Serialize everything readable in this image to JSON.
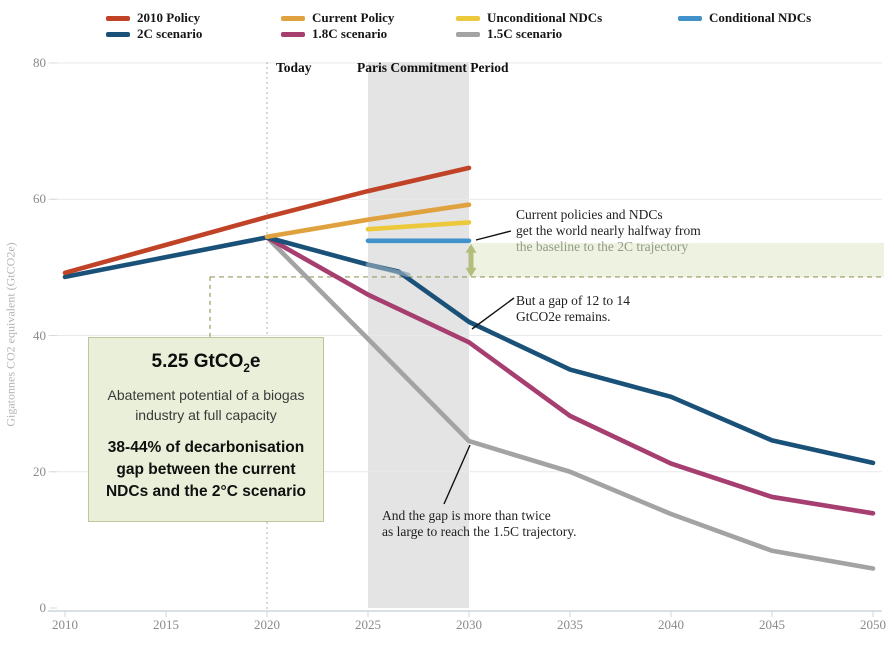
{
  "chart_data": {
    "type": "line",
    "title": "",
    "xlabel": "",
    "ylabel": "Gigatonnes CO2 equivalent (GtCO2e)",
    "xlim": [
      2010,
      2050
    ],
    "ylim": [
      0,
      80
    ],
    "x_ticks": [
      "2010",
      "2015",
      "2020",
      "2025",
      "2030",
      "2035",
      "2040",
      "2045",
      "2050"
    ],
    "y_ticks": [
      0,
      20,
      40,
      60,
      80
    ],
    "grid": "horizontal",
    "legend_position": "top",
    "series": [
      {
        "name": "1.5C scenario",
        "color": "#a3a3a3",
        "points": [
          [
            2020,
            54.4
          ],
          [
            2025,
            39.5
          ],
          [
            2030,
            24.5
          ],
          [
            2035,
            20.0
          ],
          [
            2040,
            13.8
          ],
          [
            2045,
            8.4
          ],
          [
            2050,
            5.8
          ]
        ]
      },
      {
        "name": "1.8C scenario",
        "color": "#a63e70",
        "points": [
          [
            2020,
            54.4
          ],
          [
            2025,
            46.0
          ],
          [
            2030,
            39.0
          ],
          [
            2035,
            28.2
          ],
          [
            2040,
            21.2
          ],
          [
            2045,
            16.3
          ],
          [
            2050,
            13.9
          ]
        ]
      },
      {
        "name": "2C scenario",
        "color": "#1a5179",
        "points": [
          [
            2010,
            48.6
          ],
          [
            2015,
            51.5
          ],
          [
            2020,
            54.4
          ],
          [
            2025,
            50.4
          ],
          [
            2026.5,
            49.4
          ],
          [
            2030,
            42.0
          ],
          [
            2035,
            35.0
          ],
          [
            2040,
            31.0
          ],
          [
            2045,
            24.6
          ],
          [
            2050,
            21.3
          ]
        ]
      },
      {
        "name": "2010 Policy",
        "color": "#c14327",
        "points": [
          [
            2010,
            49.2
          ],
          [
            2015,
            53.3
          ],
          [
            2020,
            57.4
          ],
          [
            2025,
            61.2
          ],
          [
            2030,
            64.6
          ]
        ]
      },
      {
        "name": "Current Policy",
        "color": "#dfa23f",
        "points": [
          [
            2020,
            54.5
          ],
          [
            2025,
            57.0
          ],
          [
            2030,
            59.2
          ]
        ]
      },
      {
        "name": "Unconditional NDCs",
        "color": "#ecc93b",
        "points": [
          [
            2025,
            55.6
          ],
          [
            2030,
            56.6
          ]
        ]
      },
      {
        "name": "Conditional NDCs",
        "color": "#4191cb",
        "points": [
          [
            2025,
            53.9
          ],
          [
            2030,
            53.9
          ]
        ]
      }
    ],
    "reference_levels": {
      "baseline_gap_level": 48.6,
      "ndc_level": 53.9,
      "green_band_top": 53.6
    }
  },
  "legend": {
    "items": [
      {
        "label": "2010 Policy",
        "color": "#c14327",
        "row": 0,
        "col": 0
      },
      {
        "label": "Current Policy",
        "color": "#dfa23f",
        "row": 0,
        "col": 1
      },
      {
        "label": "Unconditional NDCs",
        "color": "#ecc93b",
        "row": 0,
        "col": 2
      },
      {
        "label": "Conditional NDCs",
        "color": "#4191cb",
        "row": 0,
        "col": 3
      },
      {
        "label": "2C scenario",
        "color": "#1a5179",
        "row": 1,
        "col": 0
      },
      {
        "label": "1.8C scenario",
        "color": "#a63e70",
        "row": 1,
        "col": 1
      },
      {
        "label": "1.5C scenario",
        "color": "#a3a3a3",
        "row": 1,
        "col": 2
      }
    ]
  },
  "markers": {
    "today_label": "Today",
    "today_year": 2020,
    "paris_label": "Paris Commitment Period",
    "paris_from": 2025,
    "paris_to": 2030
  },
  "annotations": {
    "halfway": {
      "line1": "Current policies and NDCs",
      "line2": "get the world nearly halfway from",
      "line3": "the baseline to the 2C trajectory"
    },
    "gap": {
      "line1": "But a gap of 12 to 14",
      "line2": "GtCO2e remains."
    },
    "gap15": {
      "line1": "And the gap is more than twice",
      "line2": "as large to reach the 1.5C trajectory."
    }
  },
  "callout_box": {
    "title_pre": "5.25 GtCO",
    "title_sub": "2",
    "title_post": "e",
    "body_line1": "Abatement  potential  of a biogas",
    "body_line2": "industry  at  full capacity",
    "strong_line1": "38-44% of decarbonisation",
    "strong_line2": "gap between the current",
    "strong_line3": "NDCs and the 2°C scenario"
  },
  "colors": {
    "paris_band": "#e4e4e4",
    "green_band": "#edf2e1",
    "green_arrow": "#b5bd7d",
    "dashed_guide": "#99995c",
    "today_dash": "#b0b0b0",
    "gridline": "#e9e9e9",
    "axis_line": "#ccd7de"
  }
}
